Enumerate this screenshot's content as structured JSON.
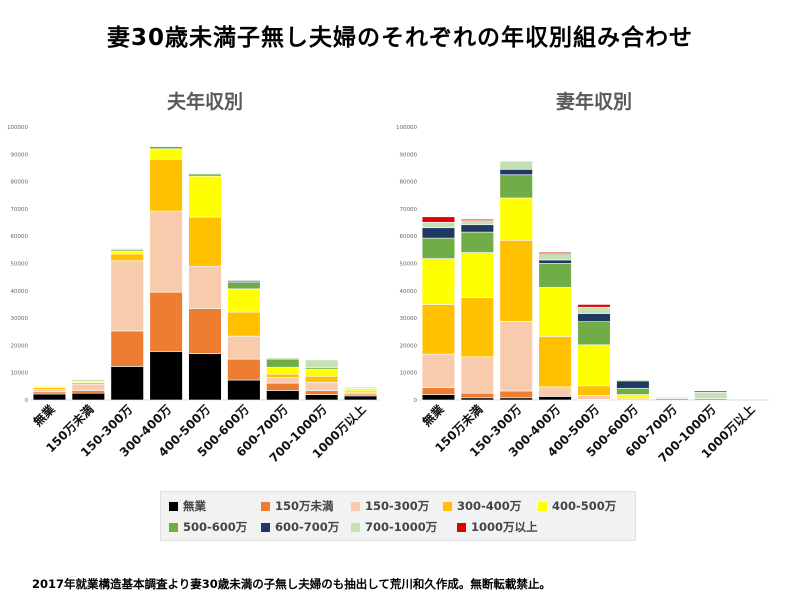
{
  "title": "妻30歳未満子無し夫婦のそれぞれの年収別組み合わせ",
  "footer_note": "2017年就業構造基本調査より妻30歳未満の子無し夫婦のも抽出して荒川和久作成。無断転載禁止。",
  "legend": [
    {
      "label": "無業",
      "color": "#000000"
    },
    {
      "label": "150万未満",
      "color": "#ED7D31"
    },
    {
      "label": "150-300万",
      "color": "#F8CBAD"
    },
    {
      "label": "300-400万",
      "color": "#FFC000"
    },
    {
      "label": "400-500万",
      "color": "#FFFF00"
    },
    {
      "label": "500-600万",
      "color": "#70AD47"
    },
    {
      "label": "600-700万",
      "color": "#203864"
    },
    {
      "label": "700-1000万",
      "color": "#C5E0B4"
    },
    {
      "label": "1000万以上",
      "color": "#E00000"
    }
  ],
  "chart_data": [
    {
      "type": "bar",
      "stacked": true,
      "title": "夫年収別",
      "categories": [
        "無業",
        "150万未満",
        "150-300万",
        "300-400万",
        "400-500万",
        "500-600万",
        "600-700万",
        "700-1000万",
        "1000万以上"
      ],
      "ylim": [
        0,
        100000
      ],
      "yticks": [
        0,
        10000,
        20000,
        30000,
        40000,
        50000,
        60000,
        70000,
        80000,
        90000,
        100000
      ],
      "grid": false,
      "series": [
        {
          "name": "無業",
          "values": [
            2200,
            2500,
            12300,
            17800,
            17000,
            7300,
            3500,
            2000,
            1500
          ]
        },
        {
          "name": "150万未満",
          "values": [
            800,
            1000,
            13000,
            21700,
            16500,
            7700,
            2700,
            1500,
            700
          ]
        },
        {
          "name": "150-300万",
          "values": [
            800,
            2300,
            25700,
            29700,
            15500,
            8400,
            2000,
            3000,
            500
          ]
        },
        {
          "name": "300-400万",
          "values": [
            700,
            600,
            2500,
            19000,
            18000,
            8800,
            1300,
            2200,
            600
          ]
        },
        {
          "name": "400-500万",
          "values": [
            500,
            400,
            1000,
            3800,
            15000,
            8500,
            2500,
            2500,
            900
          ]
        },
        {
          "name": "500-600万",
          "values": [
            0,
            0,
            500,
            800,
            800,
            2300,
            3000,
            600,
            0
          ]
        },
        {
          "name": "600-700万",
          "values": [
            0,
            0,
            0,
            0,
            0,
            500,
            0,
            0,
            0
          ]
        },
        {
          "name": "700-1000万",
          "values": [
            300,
            700,
            500,
            300,
            300,
            500,
            500,
            2900,
            500
          ]
        },
        {
          "name": "1000万以上",
          "values": [
            0,
            0,
            0,
            0,
            0,
            0,
            0,
            0,
            0
          ]
        }
      ]
    },
    {
      "type": "bar",
      "stacked": true,
      "title": "妻年収別",
      "categories": [
        "無業",
        "150万未満",
        "150-300万",
        "300-400万",
        "400-500万",
        "500-600万",
        "600-700万",
        "700-1000万",
        "1000万以上"
      ],
      "ylim": [
        0,
        100000
      ],
      "yticks": [
        0,
        10000,
        20000,
        30000,
        40000,
        50000,
        60000,
        70000,
        80000,
        90000,
        100000
      ],
      "grid": false,
      "series": [
        {
          "name": "無業",
          "values": [
            2000,
            800,
            800,
            1300,
            0,
            0,
            0,
            0,
            0
          ]
        },
        {
          "name": "150万未満",
          "values": [
            2500,
            1700,
            2500,
            0,
            200,
            0,
            0,
            0,
            0
          ]
        },
        {
          "name": "150-300万",
          "values": [
            12300,
            13300,
            25500,
            3500,
            1500,
            500,
            0,
            0,
            0
          ]
        },
        {
          "name": "300-400万",
          "values": [
            18200,
            21700,
            29700,
            18500,
            3500,
            500,
            0,
            0,
            0
          ]
        },
        {
          "name": "400-500万",
          "values": [
            16800,
            16500,
            15500,
            18000,
            15000,
            1000,
            0,
            0,
            0
          ]
        },
        {
          "name": "500-600万",
          "values": [
            7500,
            7500,
            8500,
            8700,
            8500,
            2300,
            500,
            500,
            0
          ]
        },
        {
          "name": "600-700万",
          "values": [
            3800,
            2700,
            2000,
            1300,
            3000,
            2700,
            0,
            0,
            0
          ]
        },
        {
          "name": "700-1000万",
          "values": [
            2000,
            1500,
            3000,
            2300,
            2300,
            500,
            500,
            2300,
            0
          ]
        },
        {
          "name": "1000万以上",
          "values": [
            2000,
            500,
            0,
            500,
            1000,
            0,
            0,
            500,
            0
          ]
        }
      ]
    }
  ]
}
